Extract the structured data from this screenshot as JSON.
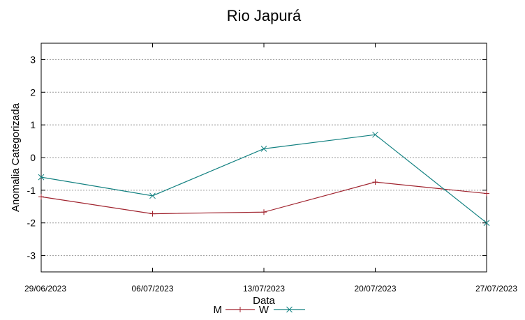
{
  "chart_data": {
    "type": "line",
    "title": "Rio Japurá",
    "xlabel": "Data",
    "ylabel": "Anomalia Categorizada",
    "categories": [
      "29/06/2023",
      "06/07/2023",
      "13/07/2023",
      "20/07/2023",
      "27/07/2023"
    ],
    "yticks": [
      "3",
      "2",
      "1",
      "0",
      "-1",
      "-2",
      "-3"
    ],
    "ylim": [
      -3.5,
      3.5
    ],
    "grid": true,
    "legend_position": "bottom",
    "series": [
      {
        "name": "M",
        "color": "#a0232e",
        "marker": "plus",
        "values": [
          -1.2,
          -1.72,
          -1.67,
          -0.75,
          -1.1
        ]
      },
      {
        "name": "W",
        "color": "#118080",
        "marker": "x",
        "values": [
          -0.6,
          -1.17,
          0.27,
          0.7,
          -2.0
        ]
      }
    ]
  }
}
